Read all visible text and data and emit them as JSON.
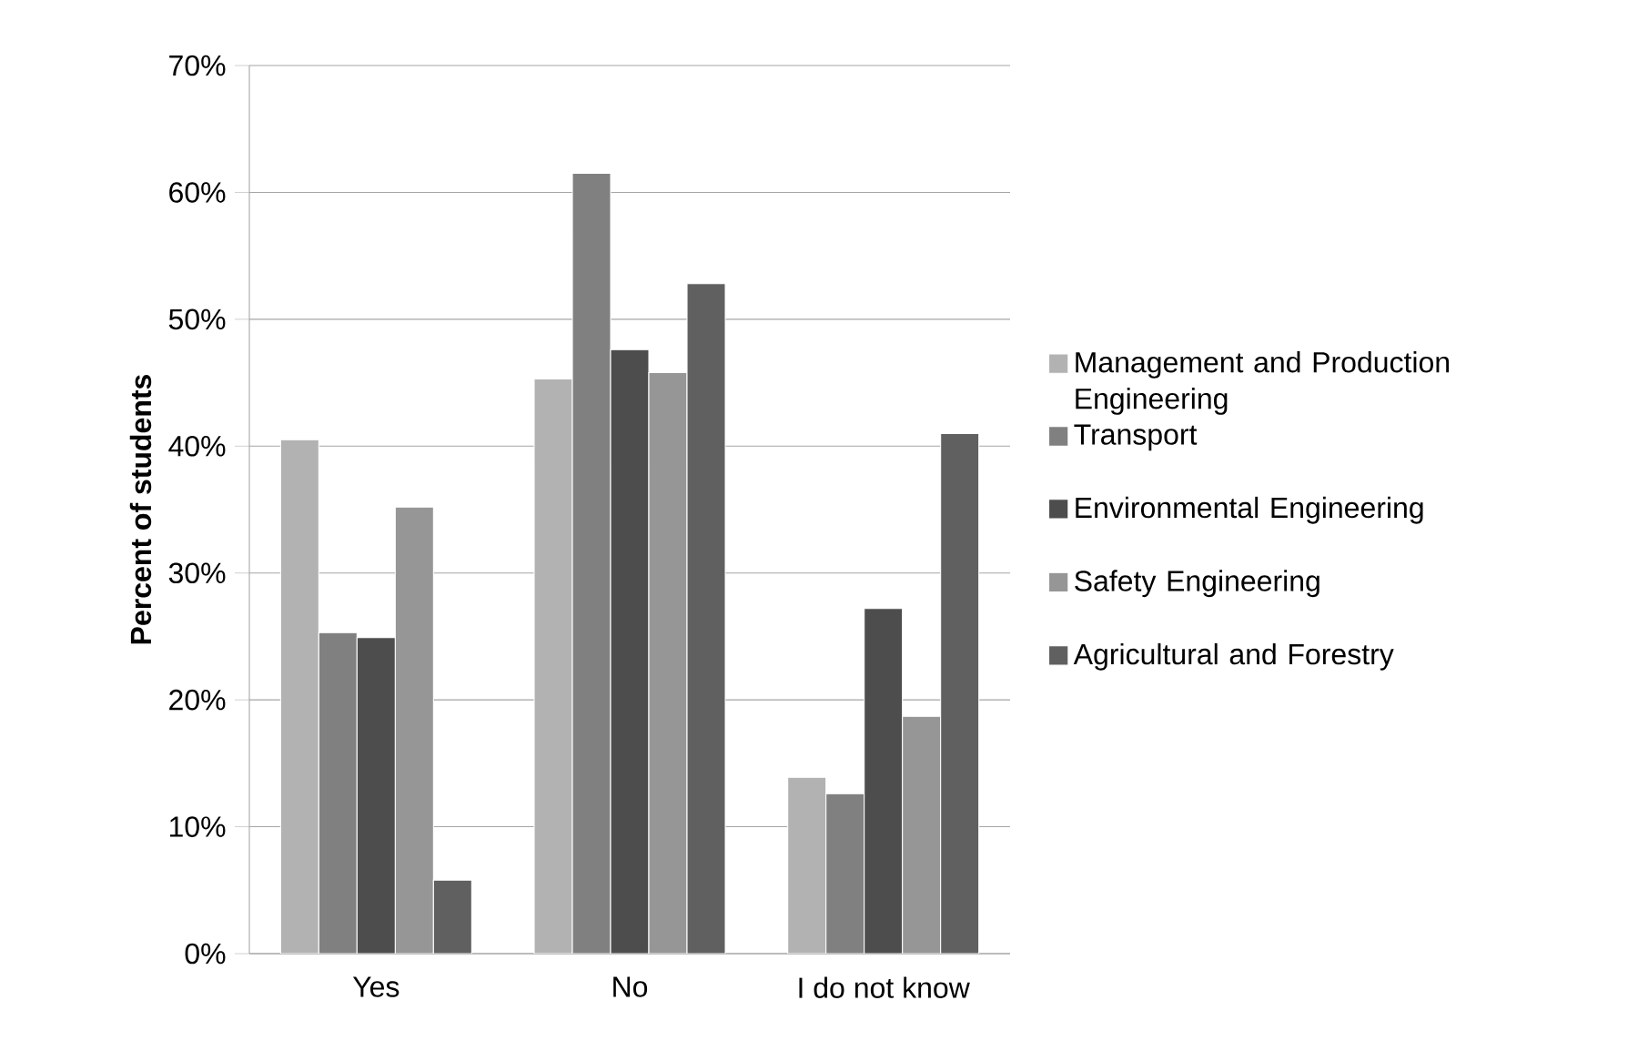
{
  "chart_data": {
    "type": "bar",
    "ylabel": "Percent of students",
    "categories": [
      "Yes",
      "No",
      "I do not know"
    ],
    "series": [
      {
        "name": "Management and Production Engineering",
        "color": "#b2b2b2",
        "values": [
          40.5,
          45.3,
          13.9
        ]
      },
      {
        "name": "Transport",
        "color": "#808080",
        "values": [
          25.3,
          61.5,
          12.6
        ]
      },
      {
        "name": "Environmental Engineering",
        "color": "#4d4d4d",
        "values": [
          24.9,
          47.6,
          27.2
        ]
      },
      {
        "name": "Safety Engineering",
        "color": "#969696",
        "values": [
          35.2,
          45.8,
          18.7
        ]
      },
      {
        "name": "Agricultural and Forestry",
        "color": "#606060",
        "values": [
          5.8,
          52.8,
          41.0
        ]
      }
    ],
    "ylim": [
      0,
      70
    ],
    "yticks": [
      {
        "value": 0,
        "label": "0%"
      },
      {
        "value": 10,
        "label": "10%"
      },
      {
        "value": 20,
        "label": "20%"
      },
      {
        "value": 30,
        "label": "30%"
      },
      {
        "value": 40,
        "label": "40%"
      },
      {
        "value": 50,
        "label": "50%"
      },
      {
        "value": 60,
        "label": "60%"
      },
      {
        "value": 70,
        "label": "70%"
      }
    ],
    "grid": "y",
    "legend": "right"
  }
}
